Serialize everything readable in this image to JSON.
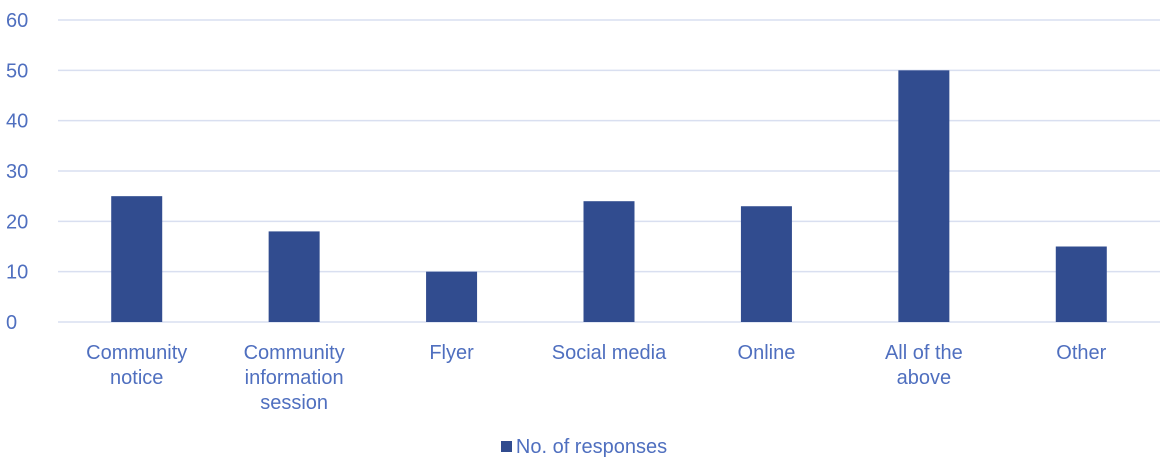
{
  "chart_data": {
    "type": "bar",
    "categories": [
      [
        "Community",
        "notice"
      ],
      [
        "Community",
        "information",
        "session"
      ],
      [
        "Flyer"
      ],
      [
        "Social media"
      ],
      [
        "Online"
      ],
      [
        "All of the",
        "above"
      ],
      [
        "Other"
      ]
    ],
    "series": [
      {
        "name": "No. of responses",
        "values": [
          25,
          18,
          10,
          24,
          23,
          50,
          15
        ]
      }
    ],
    "ylim": [
      0,
      60
    ],
    "yticks": [
      0,
      10,
      20,
      30,
      40,
      50,
      60
    ],
    "grid": true,
    "legend_position": "bottom",
    "colors": {
      "bar": "#314c8f",
      "grid": "#d9dff0",
      "axis_text": "#4f6fbf"
    }
  },
  "legend": {
    "label": "No. of responses"
  }
}
